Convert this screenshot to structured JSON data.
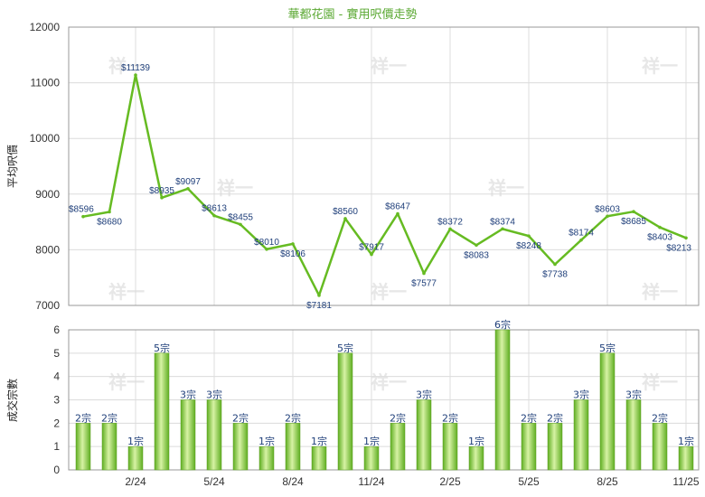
{
  "chart_data": [
    {
      "type": "line",
      "title": "華都花園 - 實用呎價走勢",
      "ylabel": "平均呎價",
      "ylim": [
        7000,
        12000
      ],
      "yticks": [
        7000,
        8000,
        9000,
        10000,
        11000,
        12000
      ],
      "color": "#66bb22",
      "series": [
        {
          "values": [
            8596,
            8680,
            11139,
            8935,
            9097,
            8613,
            8455,
            8010,
            8106,
            7181,
            8560,
            7917,
            8647,
            7577,
            8372,
            8083,
            8374,
            8248,
            7738,
            8174,
            8603,
            8685,
            8403,
            8213
          ],
          "labels": [
            "$8596",
            "$8680",
            "$11139",
            "$8935",
            "$9097",
            "$8613",
            "$8455",
            "$8010",
            "$8106",
            "$7181",
            "$8560",
            "$7917",
            "$8647",
            "$7577",
            "$8372",
            "$8083",
            "$8374",
            "$8248",
            "$7738",
            "$8174",
            "$8603",
            "$8685",
            "$8403",
            "$8213"
          ]
        }
      ],
      "grid": true
    },
    {
      "type": "bar",
      "ylabel": "成交宗數",
      "ylim": [
        0,
        6
      ],
      "yticks": [
        0,
        1,
        2,
        3,
        4,
        5,
        6
      ],
      "xticks": [
        "2/24",
        "5/24",
        "8/24",
        "11/24",
        "2/25",
        "5/25",
        "8/25",
        "11/25"
      ],
      "values": [
        2,
        2,
        1,
        5,
        3,
        3,
        2,
        1,
        2,
        1,
        5,
        1,
        2,
        3,
        2,
        1,
        6,
        2,
        2,
        3,
        5,
        3,
        2,
        1
      ],
      "labels": [
        "2宗",
        "2宗",
        "1宗",
        "5宗",
        "3宗",
        "3宗",
        "2宗",
        "1宗",
        "2宗",
        "1宗",
        "5宗",
        "1宗",
        "2宗",
        "3宗",
        "2宗",
        "1宗",
        "6宗",
        "2宗",
        "2宗",
        "3宗",
        "5宗",
        "3宗",
        "2宗",
        "1宗"
      ],
      "color": "#7cc838",
      "grid": true
    }
  ],
  "watermark": "祥一"
}
